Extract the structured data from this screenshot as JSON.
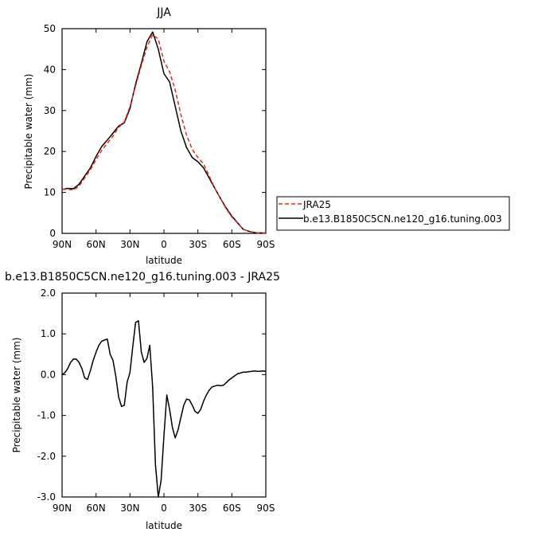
{
  "chart_data": [
    {
      "type": "line",
      "title": "JJA",
      "xlabel": "latitude",
      "ylabel": "Precipitable water (mm)",
      "xlim": [
        90,
        -90
      ],
      "ylim": [
        0,
        50
      ],
      "xticks": [
        {
          "v": 90,
          "label": "90N"
        },
        {
          "v": 60,
          "label": "60N"
        },
        {
          "v": 30,
          "label": "30N"
        },
        {
          "v": 0,
          "label": "0"
        },
        {
          "v": -30,
          "label": "30S"
        },
        {
          "v": -60,
          "label": "60S"
        },
        {
          "v": -90,
          "label": "90S"
        }
      ],
      "yticks": [
        {
          "v": 0,
          "label": "0"
        },
        {
          "v": 10,
          "label": "10"
        },
        {
          "v": 20,
          "label": "20"
        },
        {
          "v": 30,
          "label": "30"
        },
        {
          "v": 40,
          "label": "40"
        },
        {
          "v": 50,
          "label": "50"
        }
      ],
      "legend": {
        "placement": "right"
      },
      "series": [
        {
          "name": "JRA25",
          "color": "#e8261f",
          "dash": "dashed",
          "x": [
            90,
            85,
            80,
            75,
            70,
            65,
            60,
            55,
            50,
            45,
            40,
            35,
            30,
            25,
            20,
            15,
            10,
            5,
            0,
            -5,
            -10,
            -15,
            -20,
            -25,
            -30,
            -35,
            -40,
            -45,
            -50,
            -55,
            -60,
            -65,
            -70,
            -75,
            -80,
            -85,
            -90
          ],
          "y": [
            10.7,
            10.8,
            10.6,
            11.5,
            13.5,
            15.5,
            18,
            20.3,
            22.0,
            23.8,
            25.9,
            27.2,
            31,
            36,
            41,
            45.5,
            48.5,
            47.5,
            42,
            39.5,
            35,
            29,
            24,
            20.5,
            18.5,
            17,
            14,
            11,
            8.5,
            6,
            4,
            2.5,
            1.0,
            0.5,
            0.2,
            0.1,
            0.1
          ]
        },
        {
          "name": "b.e13.B1850C5CN.ne120_g16.tuning.003",
          "color": "#000000",
          "dash": "solid",
          "x": [
            90,
            85,
            80,
            75,
            70,
            65,
            60,
            55,
            50,
            45,
            40,
            35,
            30,
            25,
            20,
            15,
            10,
            5,
            0,
            -5,
            -10,
            -15,
            -20,
            -25,
            -30,
            -35,
            -40,
            -45,
            -50,
            -55,
            -60,
            -65,
            -70,
            -75,
            -80,
            -85,
            -90
          ],
          "y": [
            10.7,
            11.0,
            10.9,
            12.0,
            14.0,
            16.0,
            18.8,
            21.2,
            22.8,
            24.5,
            26.2,
            27.0,
            30.5,
            36.5,
            41.5,
            46.8,
            49.2,
            45,
            39.0,
            37.0,
            31.0,
            25,
            21.0,
            18.5,
            17.5,
            16.0,
            13.5,
            11.0,
            8.5,
            6.2,
            4.2,
            2.6,
            1.0,
            0.5,
            0.2,
            0.1,
            0.1
          ]
        }
      ]
    },
    {
      "type": "line",
      "title": "b.e13.B1850C5CN.ne120_g16.tuning.003 - JRA25",
      "xlabel": "latitude",
      "ylabel": "Precipitable water (mm)",
      "xlim": [
        90,
        -90
      ],
      "ylim": [
        -3,
        2
      ],
      "xticks": [
        {
          "v": 90,
          "label": "90N"
        },
        {
          "v": 60,
          "label": "60N"
        },
        {
          "v": 30,
          "label": "30N"
        },
        {
          "v": 0,
          "label": "0"
        },
        {
          "v": -30,
          "label": "30S"
        },
        {
          "v": -60,
          "label": "60S"
        },
        {
          "v": -90,
          "label": "90S"
        }
      ],
      "yticks": [
        {
          "v": -3,
          "label": "-3.0"
        },
        {
          "v": -2,
          "label": "-2.0"
        },
        {
          "v": -1,
          "label": "-1.0"
        },
        {
          "v": 0,
          "label": "0.0"
        },
        {
          "v": 1,
          "label": "1.0"
        },
        {
          "v": 2,
          "label": "2.0"
        }
      ],
      "series": [
        {
          "color": "#000000",
          "dash": "solid",
          "x": [
            90,
            87.5,
            85,
            82.5,
            80,
            77.5,
            75,
            72.5,
            70,
            67.5,
            65,
            62.5,
            60,
            57.5,
            55,
            52.5,
            50,
            47.5,
            45,
            42.5,
            40,
            37.5,
            35,
            32.5,
            30,
            27.5,
            25,
            22.5,
            20,
            17.5,
            15,
            12.5,
            10,
            7.5,
            5,
            2.5,
            0,
            -2.5,
            -5,
            -7.5,
            -10,
            -12.5,
            -15,
            -17.5,
            -20,
            -22.5,
            -25,
            -27.5,
            -30,
            -32.5,
            -35,
            -37.5,
            -40,
            -42.5,
            -45,
            -47.5,
            -50,
            -52.5,
            -55,
            -57.5,
            -60,
            -62.5,
            -65,
            -67.5,
            -70,
            -72.5,
            -75,
            -77.5,
            -80,
            -82.5,
            -85,
            -87.5,
            -90
          ],
          "y": [
            0.0,
            0.05,
            0.15,
            0.3,
            0.38,
            0.38,
            0.3,
            0.15,
            -0.08,
            -0.12,
            0.1,
            0.35,
            0.55,
            0.72,
            0.82,
            0.85,
            0.87,
            0.5,
            0.35,
            -0.05,
            -0.55,
            -0.78,
            -0.75,
            -0.18,
            0.05,
            0.7,
            1.28,
            1.32,
            0.55,
            0.3,
            0.4,
            0.72,
            -0.3,
            -2.2,
            -3.0,
            -2.6,
            -1.5,
            -0.5,
            -0.85,
            -1.3,
            -1.55,
            -1.35,
            -1.05,
            -0.75,
            -0.6,
            -0.62,
            -0.75,
            -0.9,
            -0.95,
            -0.85,
            -0.65,
            -0.5,
            -0.38,
            -0.3,
            -0.28,
            -0.26,
            -0.27,
            -0.26,
            -0.2,
            -0.13,
            -0.08,
            -0.03,
            0.02,
            0.04,
            0.06,
            0.06,
            0.07,
            0.08,
            0.09,
            0.08,
            0.08,
            0.09,
            0.08
          ]
        }
      ]
    }
  ]
}
